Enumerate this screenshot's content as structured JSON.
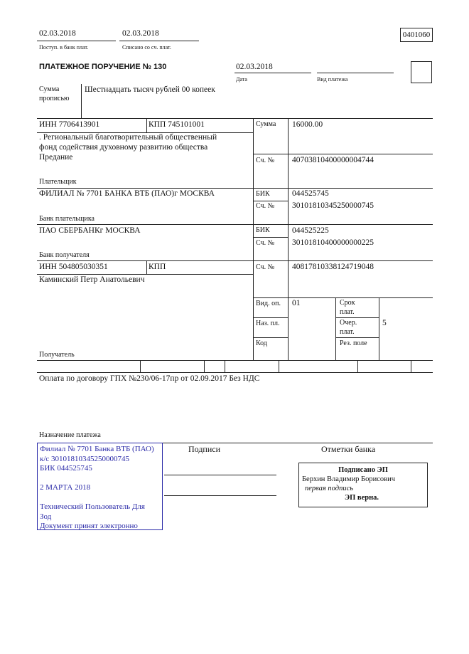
{
  "header": {
    "received_date": "02.03.2018",
    "received_label": "Поступ. в банк плат.",
    "debited_date": "02.03.2018",
    "debited_label": "Списано со сч. плат.",
    "form_code": "0401060"
  },
  "title": "ПЛАТЕЖНОЕ ПОРУЧЕНИЕ № 130",
  "date": "02.03.2018",
  "date_label": "Дата",
  "payment_type_label": "Вид платежа",
  "amount_words_label_1": "Сумма",
  "amount_words_label_2": "прописью",
  "amount_words": "Шестнадцать тысяч рублей 00 копеек",
  "payer": {
    "inn": "ИНН 7706413901",
    "kpp": "КПП 745101001",
    "name_lines": [
      ". Региональный благотворительный общественный",
      "фонд содействия духовному развитию общества",
      "Предание"
    ],
    "label": "Плательщик",
    "account_label": "Сч. №",
    "account": "40703810400000004744"
  },
  "amount_label": "Сумма",
  "amount": "16000.00",
  "payer_bank": {
    "name": "ФИЛИАЛ № 7701 БАНКА ВТБ (ПАО)г МОСКВА",
    "label": "Банк плательщика",
    "bik_label": "БИК",
    "bik": "044525745",
    "account_label": "Сч. №",
    "account": "30101810345250000745"
  },
  "payee_bank": {
    "name": "ПАО СБЕРБАНКг МОСКВА",
    "label": "Банк получателя",
    "bik_label": "БИК",
    "bik": "044525225",
    "account_label": "Сч. №",
    "account": "30101810400000000225"
  },
  "payee": {
    "inn": "ИНН 504805030351",
    "kpp": "КПП",
    "name": "Каминский Петр Анатольевич",
    "label": "Получатель",
    "account_label": "Сч. №",
    "account": "40817810338124719048"
  },
  "codes": {
    "op_type_label": "Вид. оп.",
    "op_type": "01",
    "purpose_code_label": "Наз. пл.",
    "code_label": "Код",
    "term_label_1": "Срок",
    "term_label_2": "плат.",
    "priority_label_1": "Очер.",
    "priority_label_2": "плат.",
    "priority": "5",
    "reserve_label": "Рез. поле"
  },
  "purpose": "Оплата по договору ГПХ №230/06-17пр от 02.09.2017 Без НДС",
  "purpose_label": "Назначение платежа",
  "signatures_label": "Подписи",
  "bank_marks_label": "Отметки банка",
  "stamp": {
    "lines": [
      "Филиал № 7701 Банка ВТБ (ПАО)",
      "к/с 30101810345250000745",
      "БИК 044525745",
      "",
      "2 МАРТА 2018",
      "",
      "Технический Пользователь Для",
      "Зод",
      "Документ принят электронно"
    ],
    "color": "#2a2aa8"
  },
  "bank_mark": {
    "title": "Подписано ЭП",
    "signer": "Берхин Владимир Борисович",
    "role": "первая подпись",
    "status": "ЭП верна."
  }
}
